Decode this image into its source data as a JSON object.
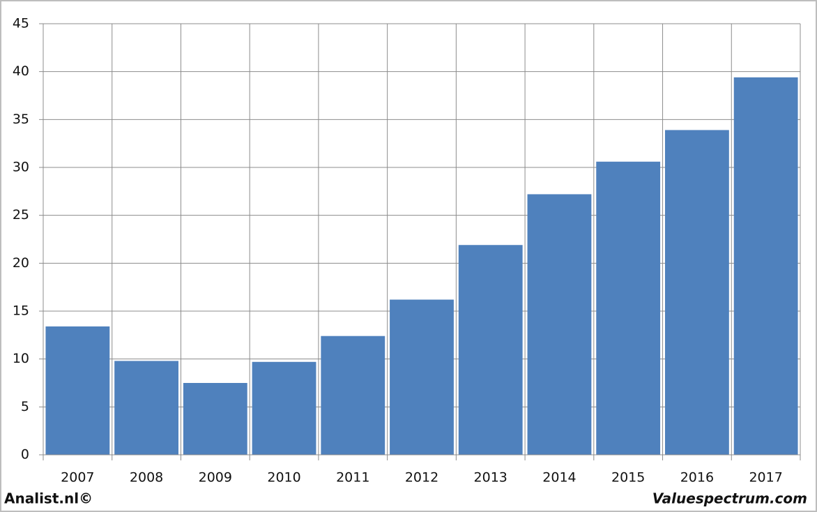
{
  "chart_data": {
    "type": "bar",
    "categories": [
      "2007",
      "2008",
      "2009",
      "2010",
      "2011",
      "2012",
      "2013",
      "2014",
      "2015",
      "2016",
      "2017"
    ],
    "values": [
      13.4,
      9.8,
      7.5,
      9.7,
      12.4,
      16.2,
      21.9,
      27.2,
      30.6,
      33.9,
      39.4
    ],
    "color": "#4f81bd",
    "ylim": [
      0,
      45
    ],
    "yticks": [
      0,
      5,
      10,
      15,
      20,
      25,
      30,
      35,
      40,
      45
    ],
    "grid": true
  },
  "footer": {
    "left": "Analist.nl©",
    "right": "Valuespectrum.com"
  }
}
